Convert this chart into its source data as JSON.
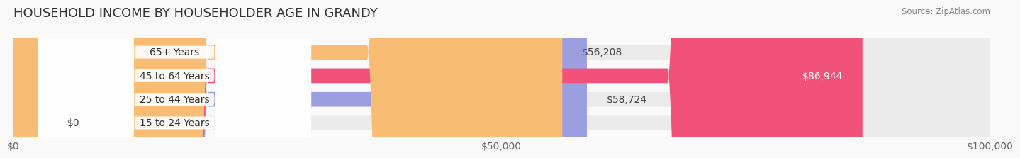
{
  "title": "HOUSEHOLD INCOME BY HOUSEHOLDER AGE IN GRANDY",
  "source": "Source: ZipAtlas.com",
  "categories": [
    "15 to 24 Years",
    "25 to 44 Years",
    "45 to 64 Years",
    "65+ Years"
  ],
  "values": [
    0,
    58724,
    86944,
    56208
  ],
  "bar_colors": [
    "#5ecfca",
    "#9b9fe0",
    "#f0527a",
    "#f9bc74"
  ],
  "bar_bg_color": "#ebebeb",
  "value_labels": [
    "$0",
    "$58,724",
    "$86,944",
    "$56,208"
  ],
  "xlim": [
    0,
    100000
  ],
  "xticks": [
    0,
    50000,
    100000
  ],
  "xtick_labels": [
    "$0",
    "$50,000",
    "$100,000"
  ],
  "background_color": "#f9f9f9",
  "title_fontsize": 13,
  "label_fontsize": 10,
  "tick_fontsize": 10
}
